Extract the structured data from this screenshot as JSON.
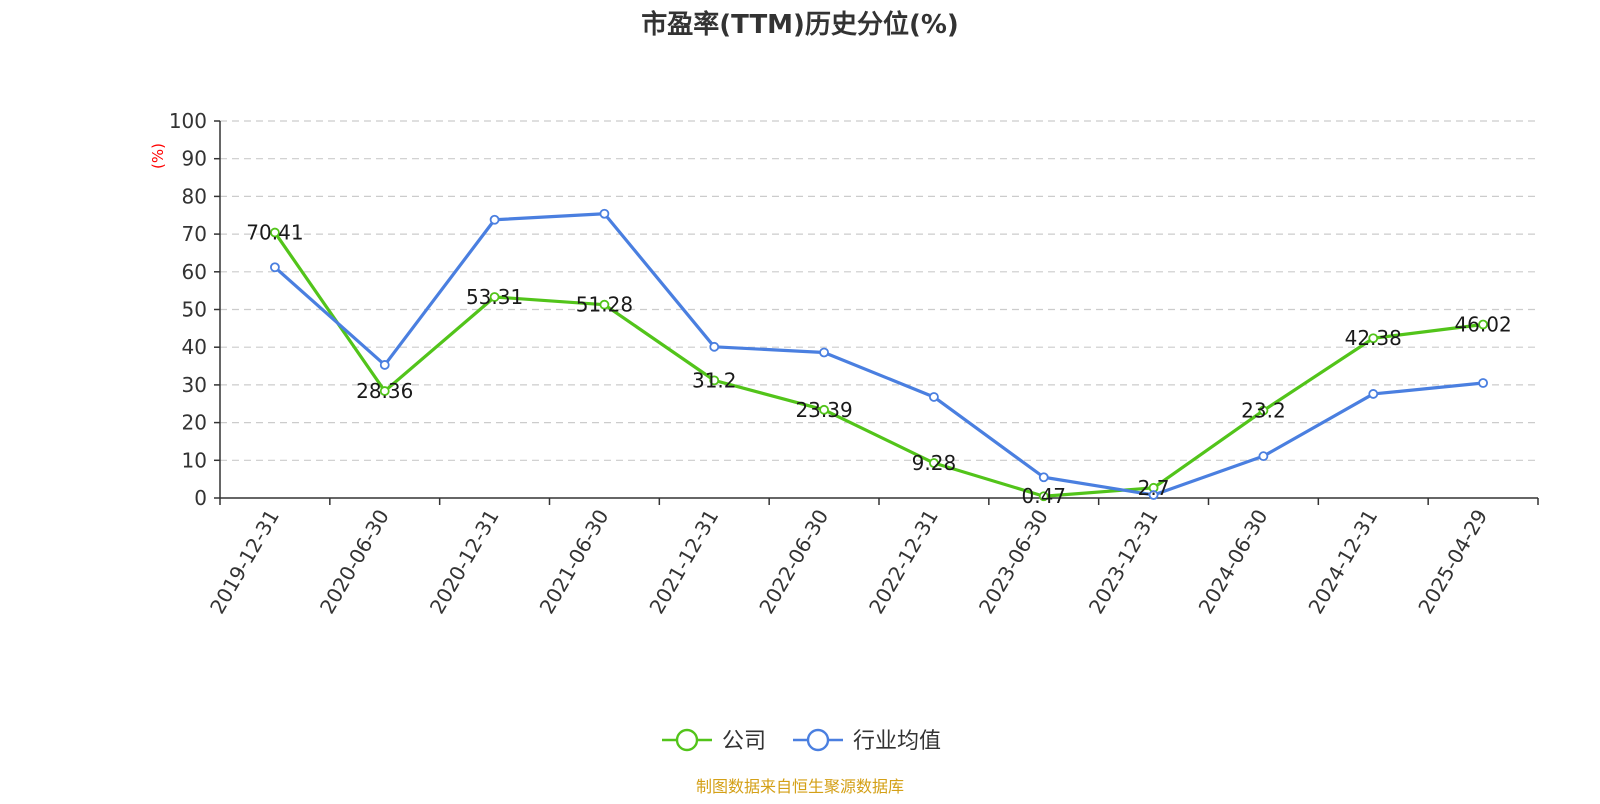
{
  "chart_data": {
    "type": "line",
    "title": "市盈率(TTM)历史分位(%)",
    "xlabel": "",
    "ylabel": "(%)",
    "ylim": [
      0,
      100
    ],
    "yticks": [
      0,
      10,
      20,
      30,
      40,
      50,
      60,
      70,
      80,
      90,
      100
    ],
    "grid": true,
    "legend_position": "bottom-center",
    "categories": [
      "2019-12-31",
      "2020-06-30",
      "2020-12-31",
      "2021-06-30",
      "2021-12-31",
      "2022-06-30",
      "2022-12-31",
      "2023-06-30",
      "2023-12-31",
      "2024-06-30",
      "2024-12-31",
      "2025-04-29"
    ],
    "series": [
      {
        "name": "公司",
        "color": "#52c41a",
        "values": [
          70.41,
          28.36,
          53.31,
          51.28,
          31.2,
          23.39,
          9.28,
          0.47,
          2.7,
          23.2,
          42.38,
          46.02
        ],
        "data_labels": [
          "70.41",
          "28.36",
          "53.31",
          "51.28",
          "31.2",
          "23.39",
          "9.28",
          "0.47",
          "2.7",
          "23.2",
          "42.38",
          "46.02"
        ]
      },
      {
        "name": "行业均值",
        "color": "#4a7fe0",
        "values": [
          61.2,
          35.3,
          73.8,
          75.4,
          40.1,
          38.6,
          26.8,
          5.5,
          0.8,
          11.1,
          27.6,
          30.5
        ]
      }
    ],
    "ylabel_color": "#ff0000",
    "source": "制图数据来自恒生聚源数据库",
    "source_color": "#d4a017"
  }
}
